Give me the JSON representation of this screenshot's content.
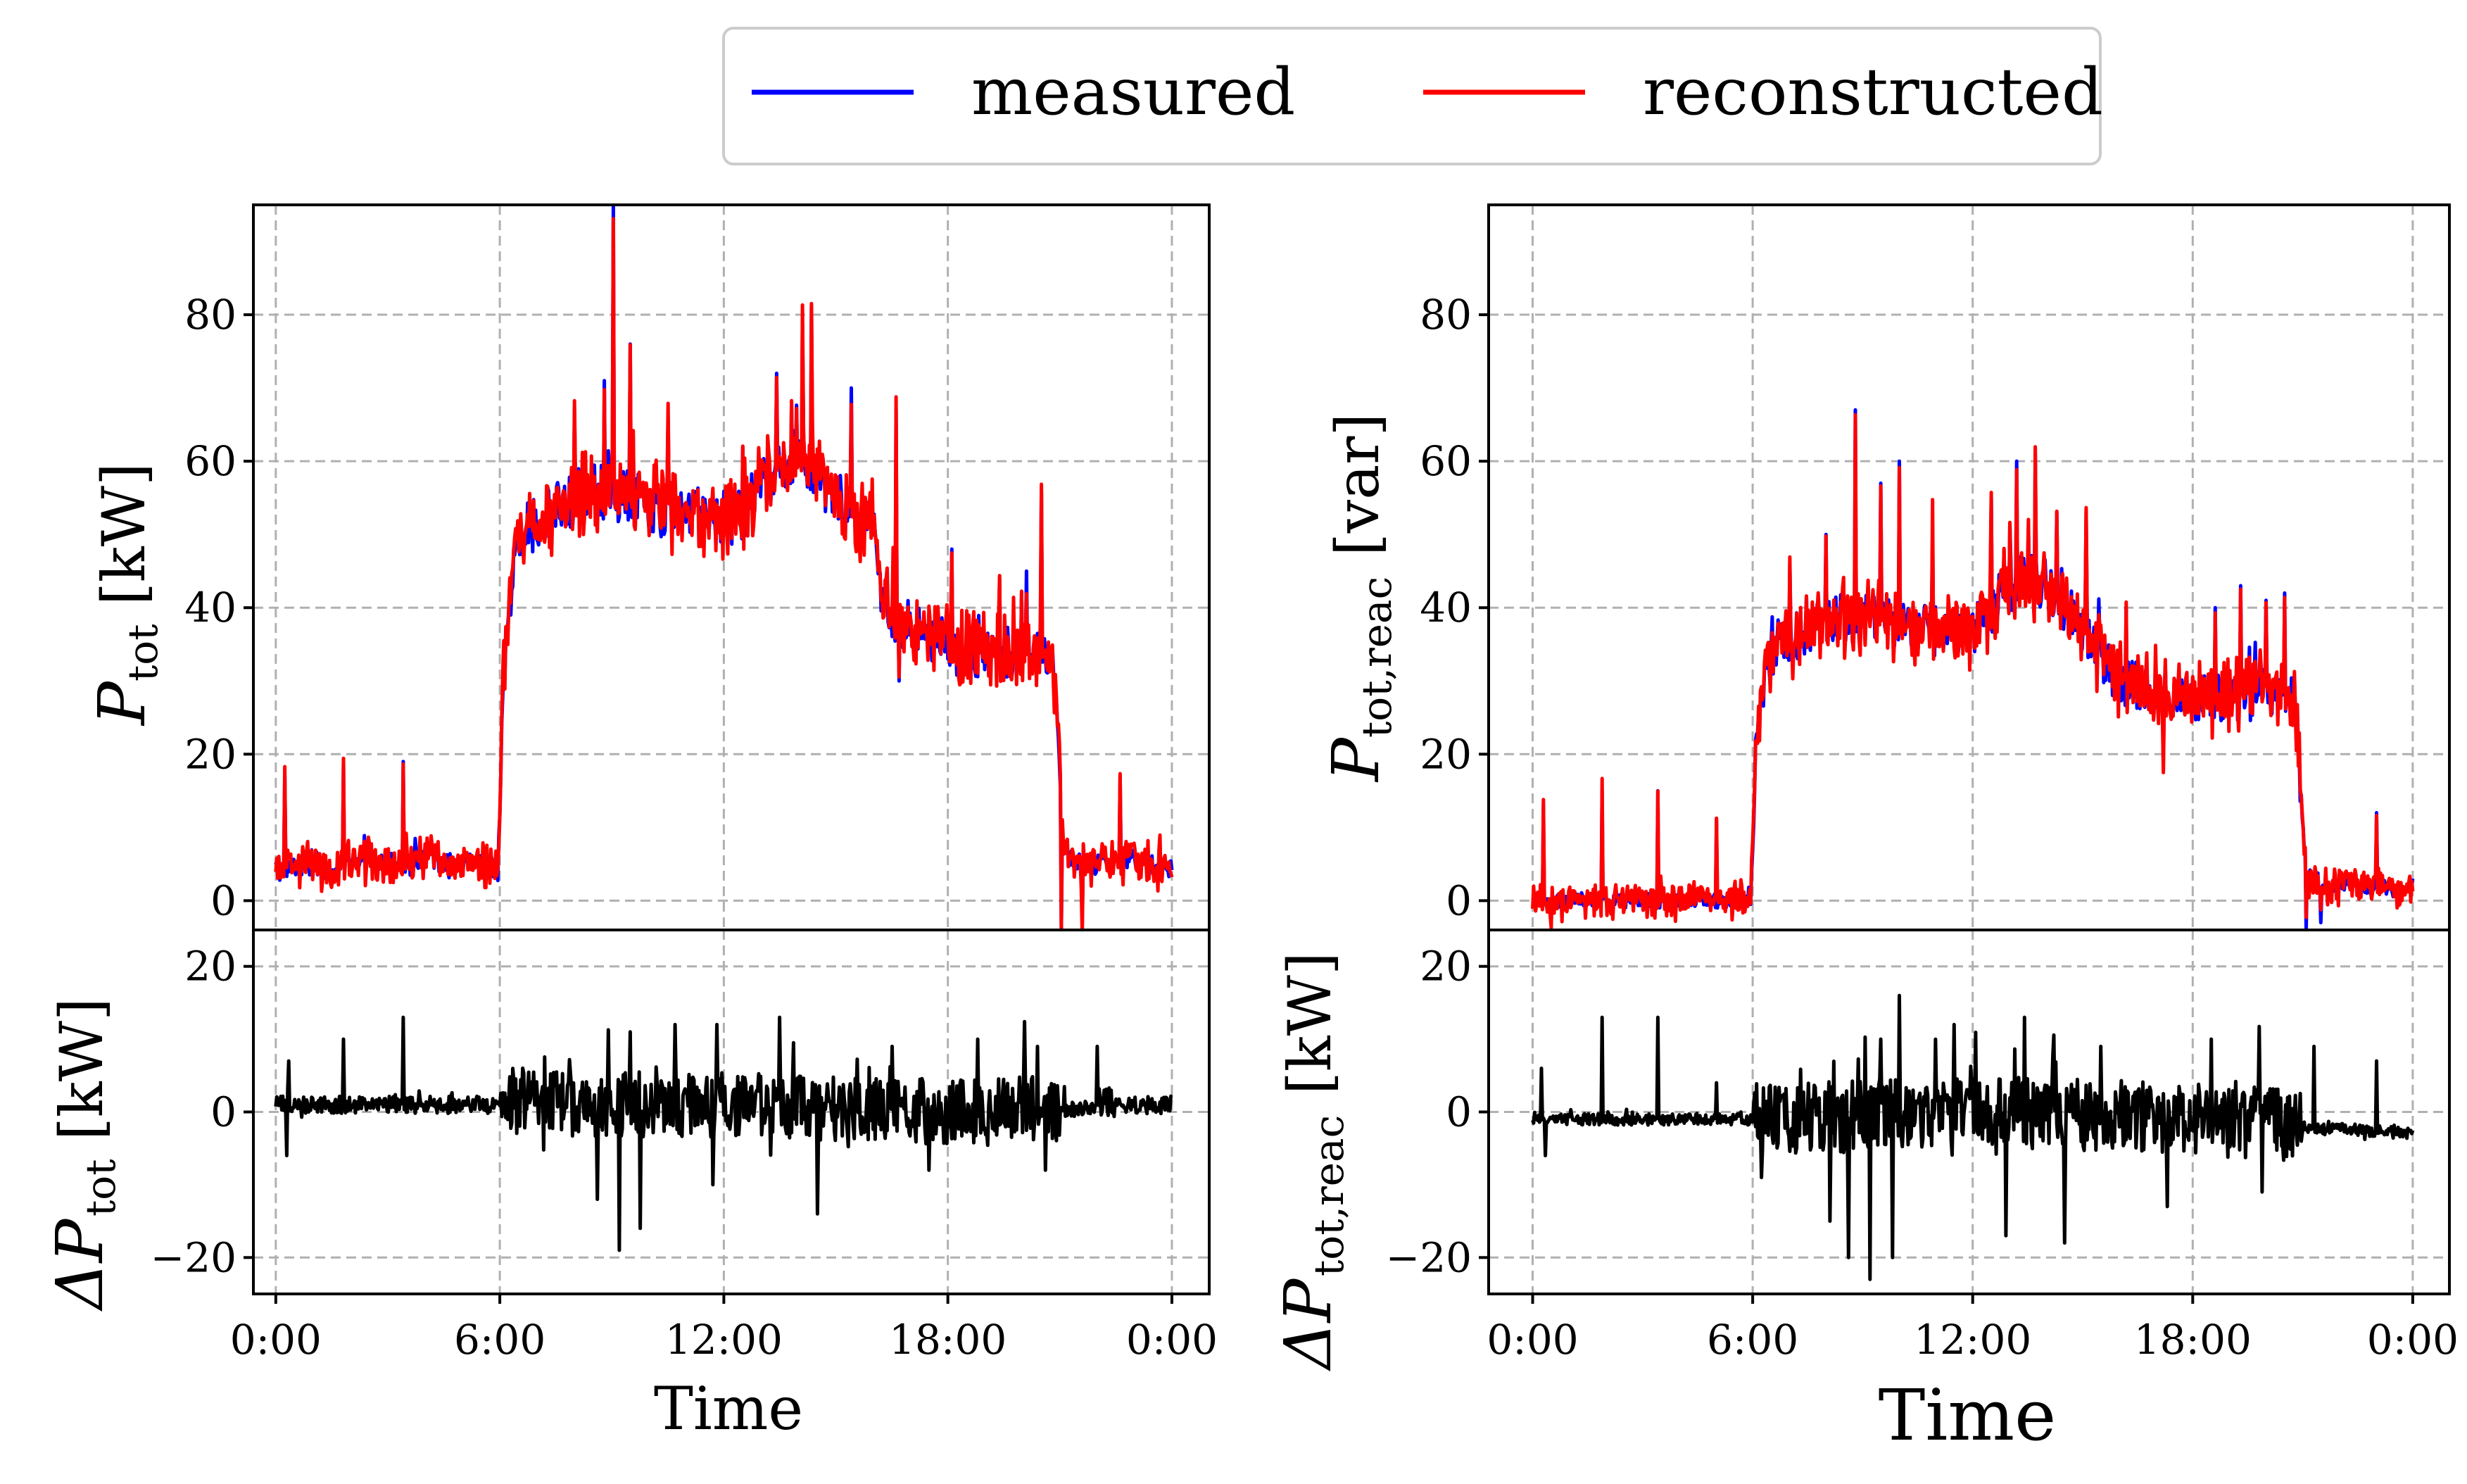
{
  "legend": {
    "entries": [
      {
        "label": "measured",
        "color": "#0000ff"
      },
      {
        "label": "reconstructed",
        "color": "#ff0000"
      }
    ]
  },
  "chart_data": [
    {
      "id": "active",
      "type": "line",
      "xlabel": "Time",
      "x_ticks": [
        "0:00",
        "6:00",
        "12:00",
        "18:00",
        "0:00"
      ],
      "x_tick_hours": [
        0,
        6,
        12,
        18,
        24
      ],
      "xlim": [
        -0.6,
        25.0
      ],
      "top": {
        "ylabel_main": "P",
        "ylabel_sub": "tot",
        "ylabel_unit": "[kW]",
        "ylim": [
          -4,
          95
        ],
        "y_ticks": [
          0,
          20,
          40,
          60,
          80
        ],
        "y_tick_labels": [
          "0",
          "20",
          "40",
          "60",
          "80"
        ],
        "profile": [
          [
            0,
            4
          ],
          [
            0.5,
            5
          ],
          [
            1,
            5
          ],
          [
            1.5,
            4
          ],
          [
            2,
            6
          ],
          [
            2.5,
            5
          ],
          [
            3,
            5
          ],
          [
            3.5,
            5
          ],
          [
            4,
            6
          ],
          [
            4.5,
            5
          ],
          [
            5,
            5
          ],
          [
            5.5,
            5
          ],
          [
            5.95,
            4
          ],
          [
            6.1,
            28
          ],
          [
            6.3,
            42
          ],
          [
            6.5,
            50
          ],
          [
            7,
            52
          ],
          [
            7.5,
            53
          ],
          [
            8,
            55
          ],
          [
            8.5,
            56
          ],
          [
            9,
            55
          ],
          [
            9.5,
            55
          ],
          [
            10,
            54
          ],
          [
            10.5,
            53
          ],
          [
            11,
            53
          ],
          [
            11.5,
            52
          ],
          [
            12,
            52
          ],
          [
            12.5,
            53
          ],
          [
            13,
            56
          ],
          [
            13.5,
            59
          ],
          [
            14,
            61
          ],
          [
            14.5,
            58
          ],
          [
            15,
            55
          ],
          [
            15.5,
            52
          ],
          [
            16,
            50
          ],
          [
            16.2,
            42
          ],
          [
            16.5,
            38
          ],
          [
            17,
            37
          ],
          [
            17.5,
            36
          ],
          [
            18,
            35
          ],
          [
            18.5,
            34
          ],
          [
            19,
            34
          ],
          [
            19.5,
            34
          ],
          [
            20,
            34
          ],
          [
            20.5,
            35
          ],
          [
            20.8,
            34
          ],
          [
            20.95,
            20
          ],
          [
            21.1,
            6
          ],
          [
            21.5,
            5
          ],
          [
            22,
            5
          ],
          [
            22.5,
            5
          ],
          [
            23,
            6
          ],
          [
            23.5,
            5
          ],
          [
            24,
            4
          ]
        ],
        "spikes": [
          [
            0.25,
            17
          ],
          [
            1.8,
            19
          ],
          [
            3.4,
            19
          ],
          [
            8.0,
            67
          ],
          [
            8.8,
            71
          ],
          [
            9.05,
            95
          ],
          [
            9.5,
            76
          ],
          [
            10.5,
            66
          ],
          [
            12.5,
            62
          ],
          [
            13.4,
            72
          ],
          [
            14.1,
            79
          ],
          [
            14.35,
            81
          ],
          [
            15.4,
            70
          ],
          [
            16.6,
            67
          ],
          [
            18.1,
            48
          ],
          [
            19.4,
            44
          ],
          [
            20.1,
            45
          ],
          [
            20.5,
            56
          ],
          [
            22.6,
            17
          ]
        ],
        "dips": [
          [
            21.05,
            -4
          ],
          [
            21.6,
            -3
          ],
          [
            16.7,
            30
          ]
        ],
        "noise": {
          "base": 1.5,
          "day": 4.0
        }
      },
      "bottom": {
        "ylabel_main": "ΔP",
        "ylabel_sub": "tot",
        "ylabel_unit": "[kW]",
        "ylim": [
          -25,
          25
        ],
        "y_ticks": [
          -20,
          0,
          20
        ],
        "y_tick_labels": [
          "−20",
          "0",
          "20"
        ],
        "profile": [
          [
            0,
            1
          ],
          [
            6,
            1
          ],
          [
            12,
            1
          ],
          [
            18,
            0
          ],
          [
            24,
            1
          ]
        ],
        "spikes": [
          [
            0.35,
            7
          ],
          [
            1.8,
            10
          ],
          [
            3.4,
            13
          ],
          [
            9.5,
            11
          ],
          [
            10.7,
            12
          ],
          [
            11.8,
            12
          ],
          [
            13.5,
            13
          ],
          [
            16.5,
            9
          ],
          [
            18.8,
            10
          ],
          [
            20.4,
            9
          ],
          [
            22.0,
            9
          ]
        ],
        "dips": [
          [
            0.3,
            -6
          ],
          [
            8.6,
            -12
          ],
          [
            9.2,
            -19
          ],
          [
            9.75,
            -16
          ],
          [
            11.7,
            -10
          ],
          [
            14.5,
            -14
          ],
          [
            17.5,
            -8
          ],
          [
            20.6,
            -8
          ]
        ],
        "noise": {
          "base": 1.2,
          "day": 4.5
        }
      }
    },
    {
      "id": "reactive",
      "type": "line",
      "xlabel": "Time",
      "x_ticks": [
        "0:00",
        "6:00",
        "12:00",
        "18:00",
        "0:00"
      ],
      "x_tick_hours": [
        0,
        6,
        12,
        18,
        24
      ],
      "xlim": [
        -1.2,
        25.0
      ],
      "top": {
        "ylabel_main": "P",
        "ylabel_sub": "tot,reac",
        "ylabel_unit": "[var]",
        "ylim": [
          -4,
          95
        ],
        "y_ticks": [
          0,
          20,
          40,
          60,
          80
        ],
        "y_tick_labels": [
          "0",
          "20",
          "40",
          "60",
          "80"
        ],
        "profile": [
          [
            0,
            0
          ],
          [
            0.5,
            0
          ],
          [
            1,
            0
          ],
          [
            2,
            0
          ],
          [
            3,
            0
          ],
          [
            4,
            0
          ],
          [
            5,
            0
          ],
          [
            5.95,
            0
          ],
          [
            6.1,
            22
          ],
          [
            6.3,
            30
          ],
          [
            6.6,
            34
          ],
          [
            7,
            36
          ],
          [
            7.5,
            37
          ],
          [
            8,
            38
          ],
          [
            9,
            39
          ],
          [
            10,
            38
          ],
          [
            11,
            37
          ],
          [
            12,
            37
          ],
          [
            12.5,
            40
          ],
          [
            13,
            43
          ],
          [
            13.5,
            44
          ],
          [
            14,
            43
          ],
          [
            14.5,
            40
          ],
          [
            15,
            37
          ],
          [
            15.5,
            33
          ],
          [
            16,
            30
          ],
          [
            17,
            29
          ],
          [
            18,
            28
          ],
          [
            19,
            28
          ],
          [
            20,
            28
          ],
          [
            20.5,
            28
          ],
          [
            20.8,
            27
          ],
          [
            20.95,
            14
          ],
          [
            21.1,
            3
          ],
          [
            21.5,
            2
          ],
          [
            22,
            2
          ],
          [
            23,
            2
          ],
          [
            24,
            1
          ]
        ],
        "spikes": [
          [
            0.3,
            13
          ],
          [
            1.9,
            15
          ],
          [
            3.4,
            15
          ],
          [
            5.0,
            11
          ],
          [
            7.0,
            46
          ],
          [
            8.0,
            50
          ],
          [
            8.8,
            67
          ],
          [
            9.5,
            57
          ],
          [
            10.0,
            60
          ],
          [
            10.9,
            51
          ],
          [
            12.5,
            55
          ],
          [
            13.2,
            60
          ],
          [
            13.7,
            61
          ],
          [
            14.3,
            53
          ],
          [
            15.1,
            53
          ],
          [
            16.2,
            40
          ],
          [
            18.6,
            40
          ],
          [
            19.3,
            43
          ],
          [
            20.0,
            41
          ],
          [
            20.5,
            42
          ],
          [
            23.0,
            12
          ]
        ],
        "dips": [
          [
            21.1,
            -4
          ],
          [
            21.5,
            -3
          ],
          [
            0.5,
            -2
          ],
          [
            17.2,
            19
          ]
        ],
        "noise": {
          "base": 1.0,
          "day": 3.6
        }
      },
      "bottom": {
        "ylabel_main": "ΔP",
        "ylabel_sub": "tot,reac",
        "ylabel_unit": "[kW]",
        "ylim": [
          -25,
          25
        ],
        "y_ticks": [
          -20,
          0,
          20
        ],
        "y_tick_labels": [
          "−20",
          "0",
          "20"
        ],
        "profile": [
          [
            0,
            -1
          ],
          [
            6,
            -1
          ],
          [
            12,
            0
          ],
          [
            18,
            -1
          ],
          [
            24,
            -3
          ]
        ],
        "spikes": [
          [
            0.25,
            6
          ],
          [
            1.9,
            13
          ],
          [
            3.4,
            13
          ],
          [
            5.0,
            4
          ],
          [
            9.5,
            10
          ],
          [
            10.0,
            16
          ],
          [
            11.5,
            12
          ],
          [
            13.4,
            13
          ],
          [
            15.5,
            9
          ],
          [
            18.5,
            10
          ],
          [
            21.3,
            9
          ],
          [
            23.0,
            7
          ]
        ],
        "dips": [
          [
            0.35,
            -6
          ],
          [
            8.1,
            -15
          ],
          [
            8.6,
            -20
          ],
          [
            9.2,
            -23
          ],
          [
            9.8,
            -20
          ],
          [
            12.9,
            -17
          ],
          [
            14.5,
            -18
          ],
          [
            17.3,
            -13
          ],
          [
            19.9,
            -11
          ]
        ],
        "noise": {
          "base": 0.8,
          "day": 5.0
        }
      }
    }
  ]
}
